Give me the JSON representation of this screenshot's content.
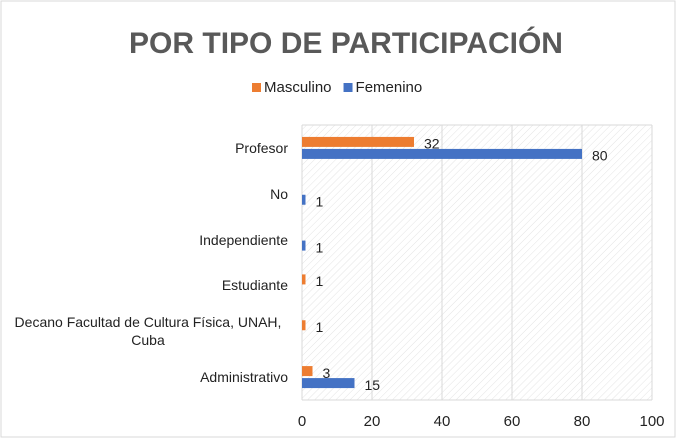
{
  "chart_data": {
    "type": "bar",
    "orientation": "horizontal",
    "title": "POR TIPO DE PARTICIPACIÓN",
    "categories": [
      "Profesor",
      "No",
      "Independiente",
      "Estudiante",
      "Decano Facultad de Cultura Física, UNAH, Cuba",
      "Administrativo"
    ],
    "series": [
      {
        "name": "Masculino",
        "color": "#ed7d31",
        "values": [
          32,
          null,
          null,
          1,
          1,
          3
        ]
      },
      {
        "name": "Femenino",
        "color": "#4472c4",
        "values": [
          80,
          1,
          1,
          null,
          null,
          15
        ]
      }
    ],
    "xlim": [
      0,
      100
    ],
    "xticks": [
      0,
      20,
      40,
      60,
      80,
      100
    ],
    "grid": true,
    "legend": "top"
  }
}
